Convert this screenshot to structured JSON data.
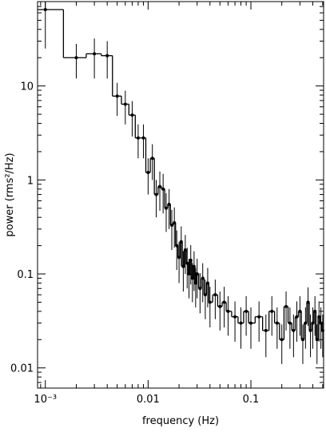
{
  "chart_data": {
    "type": "step-errorbar",
    "xlabel": "frequency (Hz)",
    "ylabel": "power (rms²/Hz)",
    "xscale": "log",
    "yscale": "log",
    "color": "#000000",
    "xlim": [
      0.00084,
      0.51
    ],
    "ylim": [
      0.0061,
      79
    ],
    "xticks": [
      {
        "value": 0.001,
        "label": "10⁻³"
      },
      0.01,
      0.1
    ],
    "yticks": [
      0.01,
      0.1,
      1,
      10
    ],
    "x": [
      0.001,
      0.002,
      0.003,
      0.004,
      0.005,
      0.006,
      0.007,
      0.008,
      0.009,
      0.01,
      0.011,
      0.012,
      0.013,
      0.014,
      0.015,
      0.016,
      0.017,
      0.018,
      0.019,
      0.02,
      0.021,
      0.022,
      0.023,
      0.024,
      0.025,
      0.026,
      0.027,
      0.028,
      0.029,
      0.03,
      0.032,
      0.034,
      0.036,
      0.038,
      0.04,
      0.045,
      0.05,
      0.055,
      0.06,
      0.07,
      0.08,
      0.09,
      0.1,
      0.12,
      0.14,
      0.16,
      0.18,
      0.2,
      0.22,
      0.24,
      0.26,
      0.28,
      0.3,
      0.32,
      0.34,
      0.36,
      0.38,
      0.4,
      0.42,
      0.44,
      0.46,
      0.48,
      0.5
    ],
    "values": [
      65,
      20,
      22,
      21,
      7.8,
      6.4,
      4.9,
      2.8,
      2.8,
      1.2,
      1.7,
      0.7,
      0.85,
      0.8,
      0.5,
      0.55,
      0.33,
      0.35,
      0.2,
      0.15,
      0.22,
      0.12,
      0.18,
      0.13,
      0.1,
      0.14,
      0.09,
      0.12,
      0.08,
      0.1,
      0.07,
      0.09,
      0.06,
      0.08,
      0.05,
      0.06,
      0.045,
      0.05,
      0.04,
      0.035,
      0.03,
      0.04,
      0.03,
      0.035,
      0.025,
      0.04,
      0.03,
      0.02,
      0.045,
      0.03,
      0.025,
      0.035,
      0.04,
      0.02,
      0.03,
      0.05,
      0.025,
      0.03,
      0.04,
      0.02,
      0.035,
      0.03,
      0.025
    ],
    "errors": [
      40,
      8,
      10,
      9,
      3,
      2.5,
      2,
      1.1,
      1.1,
      0.5,
      0.7,
      0.3,
      0.38,
      0.36,
      0.22,
      0.25,
      0.15,
      0.16,
      0.09,
      0.07,
      0.1,
      0.055,
      0.08,
      0.06,
      0.045,
      0.063,
      0.04,
      0.054,
      0.036,
      0.045,
      0.032,
      0.04,
      0.027,
      0.036,
      0.023,
      0.027,
      0.02,
      0.023,
      0.018,
      0.016,
      0.014,
      0.018,
      0.014,
      0.016,
      0.012,
      0.018,
      0.014,
      0.009,
      0.02,
      0.014,
      0.012,
      0.016,
      0.018,
      0.009,
      0.014,
      0.022,
      0.012,
      0.014,
      0.018,
      0.009,
      0.016,
      0.014,
      0.012
    ]
  }
}
